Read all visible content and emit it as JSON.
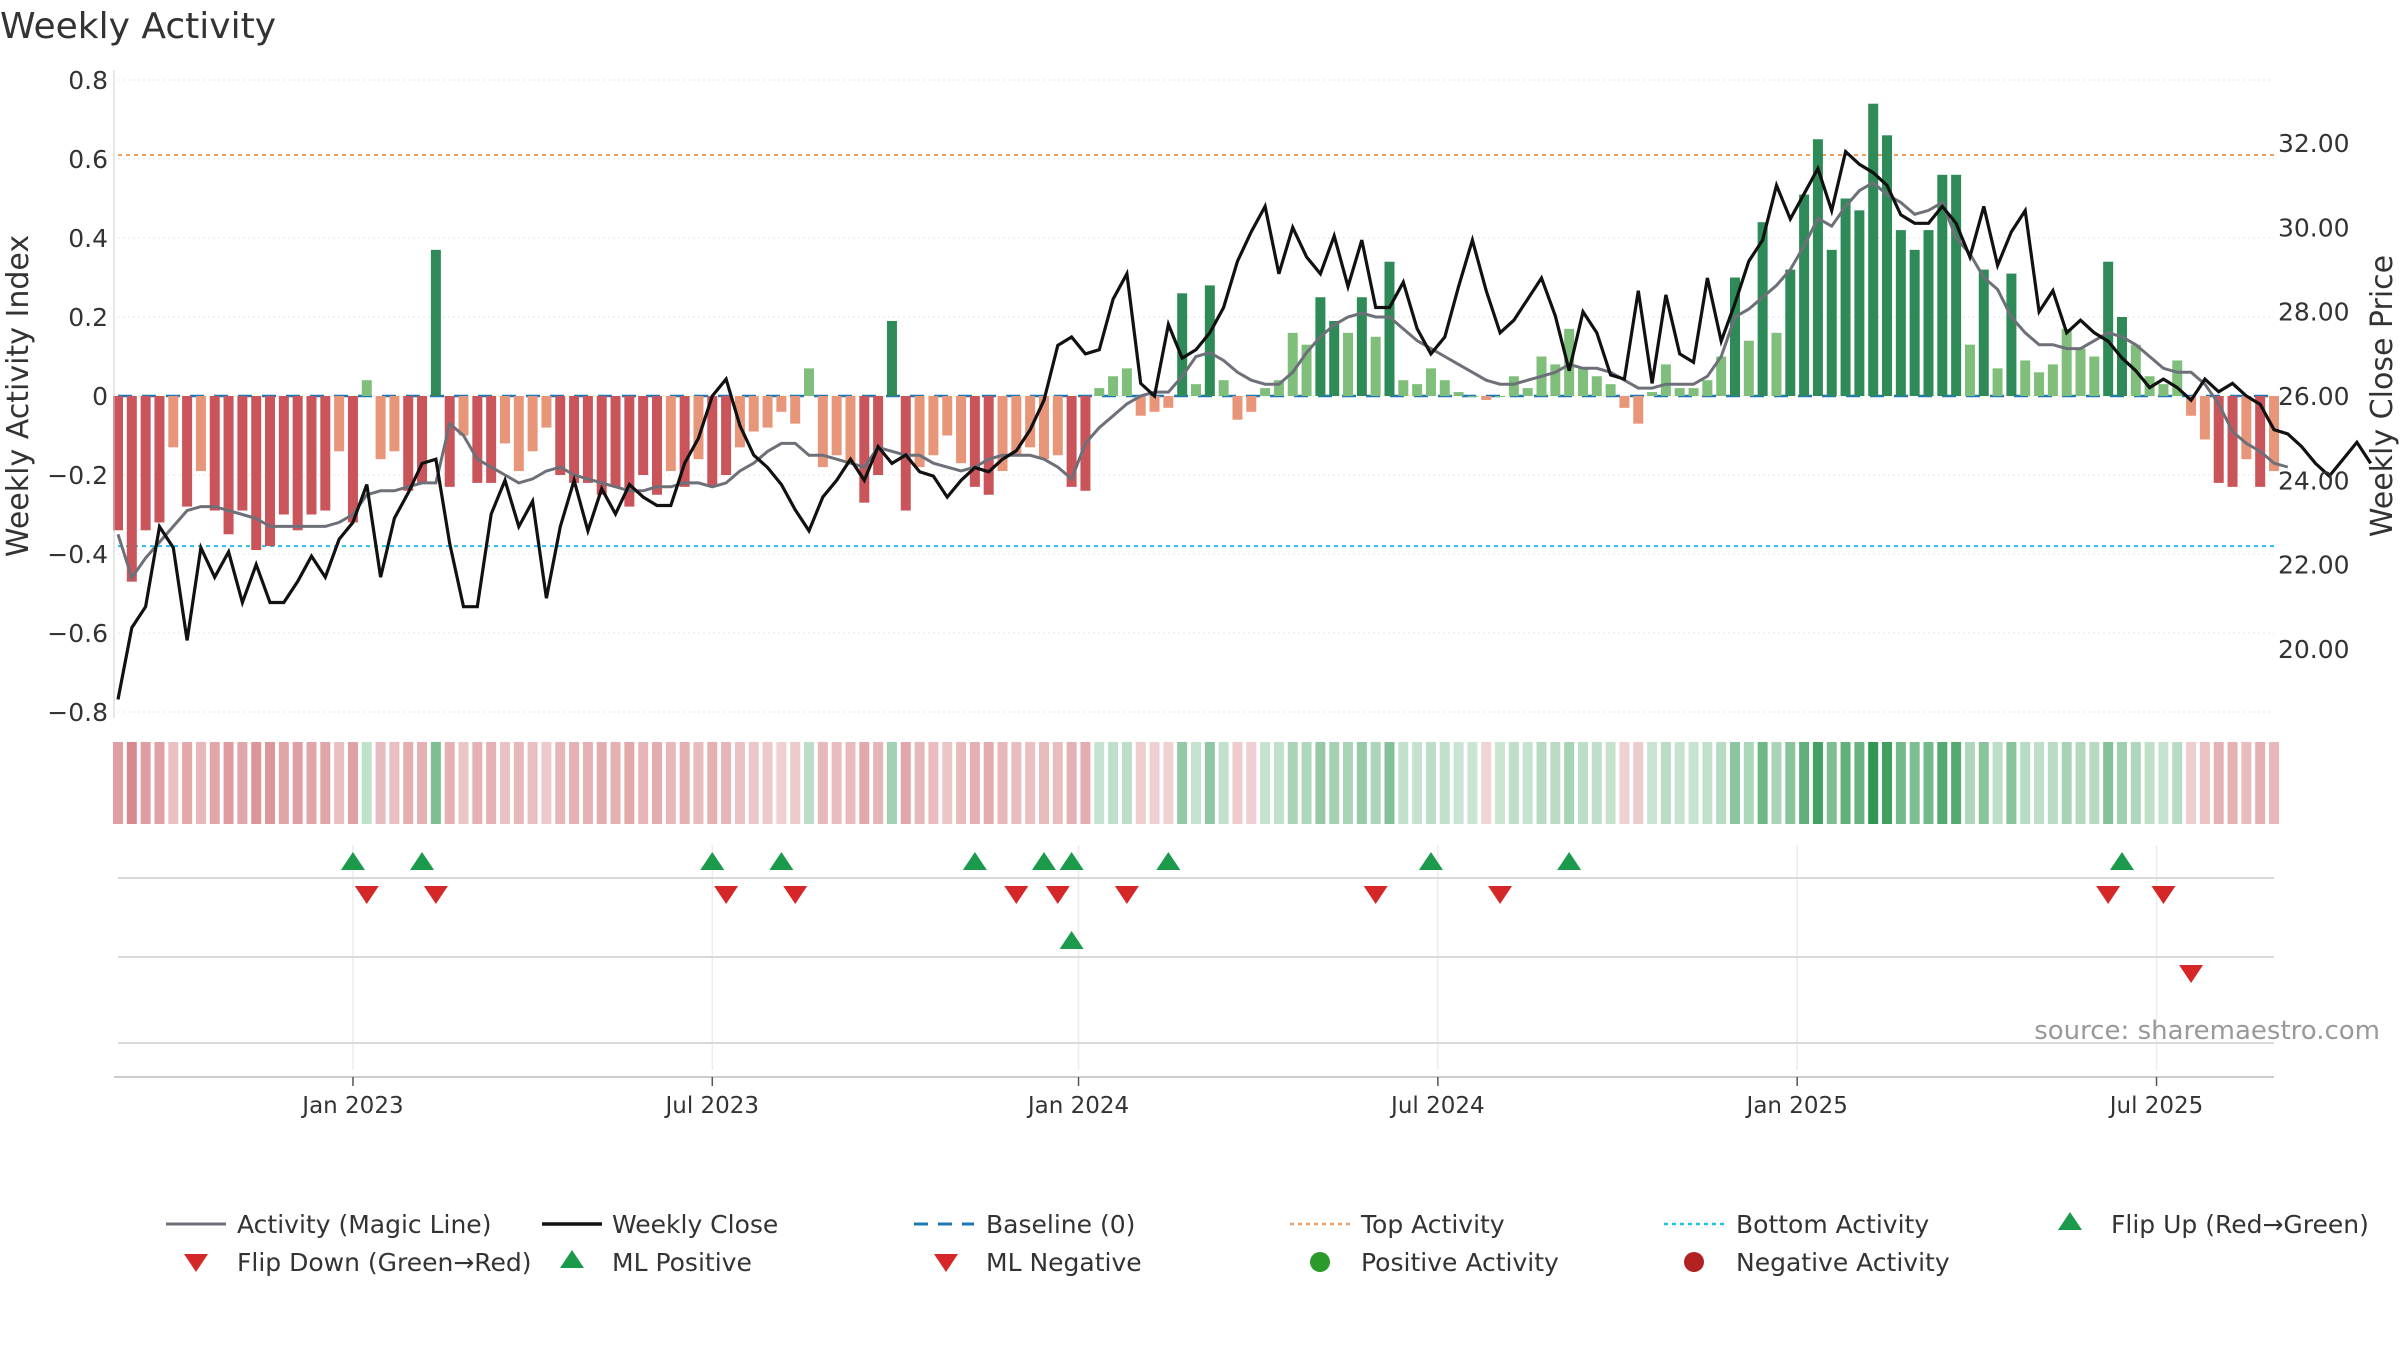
{
  "chart_data": {
    "type": "bar",
    "title": "Weekly Activity",
    "ylabel": "Weekly Activity Index",
    "y2label": "Weekly Close Price",
    "source": "source: sharemaestro.com",
    "ylim": [
      -0.8,
      0.8
    ],
    "y2lim": [
      18.5,
      33.5
    ],
    "y_ticks": [
      "0.8",
      "0.6",
      "0.4",
      "0.2",
      "0",
      "−0.2",
      "−0.4",
      "−0.6",
      "−0.8"
    ],
    "y_tick_values": [
      0.8,
      0.6,
      0.4,
      0.2,
      0,
      -0.2,
      -0.4,
      -0.6,
      -0.8
    ],
    "y2_ticks": [
      "32.00",
      "30.00",
      "28.00",
      "26.00",
      "24.00",
      "22.00",
      "20.00"
    ],
    "y2_tick_values": [
      32,
      30,
      28,
      26,
      24,
      22,
      20
    ],
    "x_ticks": [
      "Jan 2023",
      "Jul 2023",
      "Jan 2024",
      "Jul 2024",
      "Jan 2025",
      "Jul 2025"
    ],
    "x_tick_weeks": [
      17,
      43,
      69.5,
      95.5,
      121.5,
      147.5
    ],
    "top_activity": 0.61,
    "bottom_activity": -0.38,
    "weeks": 157,
    "activity": [
      -0.34,
      -0.47,
      -0.34,
      -0.32,
      -0.13,
      -0.28,
      -0.19,
      -0.29,
      -0.35,
      -0.29,
      -0.39,
      -0.38,
      -0.3,
      -0.34,
      -0.3,
      -0.29,
      -0.14,
      -0.32,
      0.04,
      -0.16,
      -0.14,
      -0.24,
      -0.22,
      0.37,
      -0.23,
      -0.1,
      -0.22,
      -0.22,
      -0.12,
      -0.19,
      -0.14,
      -0.08,
      -0.2,
      -0.22,
      -0.22,
      -0.25,
      -0.23,
      -0.28,
      -0.2,
      -0.25,
      -0.19,
      -0.23,
      -0.16,
      -0.23,
      -0.2,
      -0.13,
      -0.09,
      -0.08,
      -0.04,
      -0.07,
      0.07,
      -0.18,
      -0.15,
      -0.17,
      -0.27,
      -0.2,
      0.19,
      -0.29,
      -0.18,
      -0.15,
      -0.1,
      -0.17,
      -0.23,
      -0.25,
      -0.19,
      -0.15,
      -0.13,
      -0.16,
      -0.15,
      -0.23,
      -0.24,
      0.02,
      0.05,
      0.07,
      -0.05,
      -0.04,
      -0.03,
      0.26,
      0.03,
      0.28,
      0.04,
      -0.06,
      -0.04,
      0.02,
      0.04,
      0.16,
      0.13,
      0.25,
      0.19,
      0.16,
      0.25,
      0.15,
      0.34,
      0.04,
      0.03,
      0.07,
      0.04,
      0.01,
      0.0,
      -0.01,
      0.0,
      0.05,
      0.02,
      0.1,
      0.08,
      0.17,
      0.07,
      0.05,
      0.03,
      -0.03,
      -0.07,
      0.01,
      0.08,
      0.02,
      0.02,
      0.04,
      0.1,
      0.3,
      0.14,
      0.44,
      0.16,
      0.32,
      0.51,
      0.65,
      0.37,
      0.5,
      0.47,
      0.74,
      0.66,
      0.42,
      0.37,
      0.42,
      0.56,
      0.56,
      0.13,
      0.32,
      0.07,
      0.31,
      0.09,
      0.06,
      0.08,
      0.17,
      0.12,
      0.1,
      0.34,
      0.2,
      0.13,
      0.05,
      0.03,
      0.09,
      -0.05,
      -0.11,
      -0.22,
      -0.23,
      -0.16,
      -0.23,
      -0.19
    ],
    "magic_line": [
      -0.35,
      -0.46,
      -0.41,
      -0.37,
      -0.33,
      -0.29,
      -0.28,
      -0.28,
      -0.29,
      -0.3,
      -0.31,
      -0.33,
      -0.33,
      -0.33,
      -0.33,
      -0.33,
      -0.32,
      -0.3,
      -0.25,
      -0.24,
      -0.24,
      -0.23,
      -0.22,
      -0.22,
      -0.07,
      -0.1,
      -0.16,
      -0.18,
      -0.2,
      -0.22,
      -0.21,
      -0.19,
      -0.18,
      -0.2,
      -0.21,
      -0.22,
      -0.23,
      -0.24,
      -0.24,
      -0.23,
      -0.23,
      -0.22,
      -0.22,
      -0.23,
      -0.22,
      -0.19,
      -0.17,
      -0.14,
      -0.12,
      -0.12,
      -0.15,
      -0.15,
      -0.16,
      -0.17,
      -0.18,
      -0.13,
      -0.14,
      -0.15,
      -0.15,
      -0.17,
      -0.18,
      -0.19,
      -0.18,
      -0.16,
      -0.15,
      -0.15,
      -0.15,
      -0.16,
      -0.18,
      -0.21,
      -0.12,
      -0.08,
      -0.05,
      -0.02,
      0.0,
      0.01,
      0.01,
      0.05,
      0.1,
      0.11,
      0.09,
      0.06,
      0.04,
      0.03,
      0.03,
      0.06,
      0.11,
      0.15,
      0.18,
      0.2,
      0.21,
      0.2,
      0.2,
      0.17,
      0.14,
      0.12,
      0.1,
      0.08,
      0.06,
      0.04,
      0.03,
      0.03,
      0.04,
      0.05,
      0.06,
      0.08,
      0.07,
      0.07,
      0.06,
      0.04,
      0.02,
      0.02,
      0.03,
      0.03,
      0.03,
      0.05,
      0.1,
      0.2,
      0.22,
      0.25,
      0.28,
      0.32,
      0.38,
      0.45,
      0.43,
      0.48,
      0.52,
      0.54,
      0.51,
      0.49,
      0.46,
      0.47,
      0.49,
      0.4,
      0.36,
      0.3,
      0.27,
      0.2,
      0.16,
      0.13,
      0.13,
      0.12,
      0.12,
      0.14,
      0.16,
      0.15,
      0.13,
      0.1,
      0.07,
      0.06,
      0.06,
      0.03,
      -0.02,
      -0.09,
      -0.12,
      -0.14,
      -0.17,
      -0.18
    ],
    "weekly_close": [
      18.8,
      20.5,
      21,
      22.9,
      22.4,
      20.2,
      22.4,
      21.7,
      22.3,
      21.1,
      22,
      21.1,
      21.1,
      21.6,
      22.2,
      21.7,
      22.6,
      23,
      23.9,
      21.7,
      23.1,
      23.7,
      24.4,
      24.5,
      22.5,
      21,
      21,
      23.2,
      24,
      22.9,
      23.5,
      21.2,
      22.9,
      24,
      22.8,
      23.8,
      23.2,
      23.9,
      23.6,
      23.4,
      23.4,
      24.4,
      25,
      26,
      26.4,
      25.3,
      24.6,
      24.3,
      23.9,
      23.3,
      22.8,
      23.6,
      24,
      24.5,
      24,
      24.8,
      24.4,
      24.6,
      24.2,
      24.1,
      23.6,
      24,
      24.3,
      24.2,
      24.5,
      24.7,
      25.2,
      25.9,
      27.2,
      27.4,
      27,
      27.1,
      28.3,
      28.9,
      26.3,
      26,
      27.7,
      26.9,
      27.1,
      27.5,
      28.1,
      29.2,
      29.9,
      30.5,
      28.9,
      30,
      29.3,
      28.9,
      29.8,
      28.6,
      29.7,
      28.1,
      28.1,
      28.7,
      27.6,
      27,
      27.4,
      28.6,
      29.7,
      28.5,
      27.5,
      27.8,
      28.3,
      28.8,
      27.9,
      26.6,
      28,
      27.5,
      26.5,
      26.4,
      28.5,
      26.3,
      28.4,
      27,
      26.8,
      28.8,
      27.3,
      28.2,
      29.2,
      29.7,
      31,
      30.2,
      30.8,
      31.4,
      30.4,
      31.8,
      31.5,
      31.3,
      31,
      30.3,
      30.1,
      30.1,
      30.5,
      30.1,
      29.3,
      30.5,
      29.1,
      29.9,
      30.4,
      28,
      28.5,
      27.5,
      27.8,
      27.5,
      27.3,
      26.9,
      26.6,
      26.2,
      26.4,
      26.2,
      25.9,
      26.4,
      26.1,
      26.3,
      26,
      25.8,
      25.2,
      25.1,
      24.8,
      24.4,
      24.1,
      24.5,
      24.9,
      24.4
    ],
    "flip_up_weeks": [
      17,
      22,
      43,
      48,
      62,
      67,
      69,
      76,
      95,
      105,
      145
    ],
    "flip_down_weeks": [
      18,
      23,
      44,
      49,
      65,
      68,
      73,
      91,
      100,
      144,
      148
    ],
    "ml_positive_weeks": [
      69
    ],
    "ml_negative_weeks": [
      150
    ],
    "legend": {
      "magic_line": "Activity (Magic Line)",
      "weekly_close": "Weekly Close",
      "baseline": "Baseline (0)",
      "top_activity": "Top Activity",
      "bottom_activity": "Bottom Activity",
      "flip_up": "Flip Up (Red→Green)",
      "flip_down": "Flip Down (Green→Red)",
      "ml_positive": "ML Positive",
      "ml_negative": "ML Negative",
      "positive_activity": "Positive Activity",
      "negative_activity": "Negative Activity"
    }
  },
  "colors": {
    "pos_strong": "#2e8b57",
    "pos_light": "#7fbf7b",
    "neg_strong": "#c9555a",
    "neg_light": "#e8967a",
    "magic_line": "#6e7079",
    "close_line": "#111111",
    "baseline": "#1f77b4",
    "top_line": "#f0a060",
    "bottom_line": "#22c3e0",
    "flip_up": "#1a9a4a",
    "flip_down": "#d62728",
    "positive_dot": "#2a9a2a",
    "negative_dot": "#b22222"
  }
}
